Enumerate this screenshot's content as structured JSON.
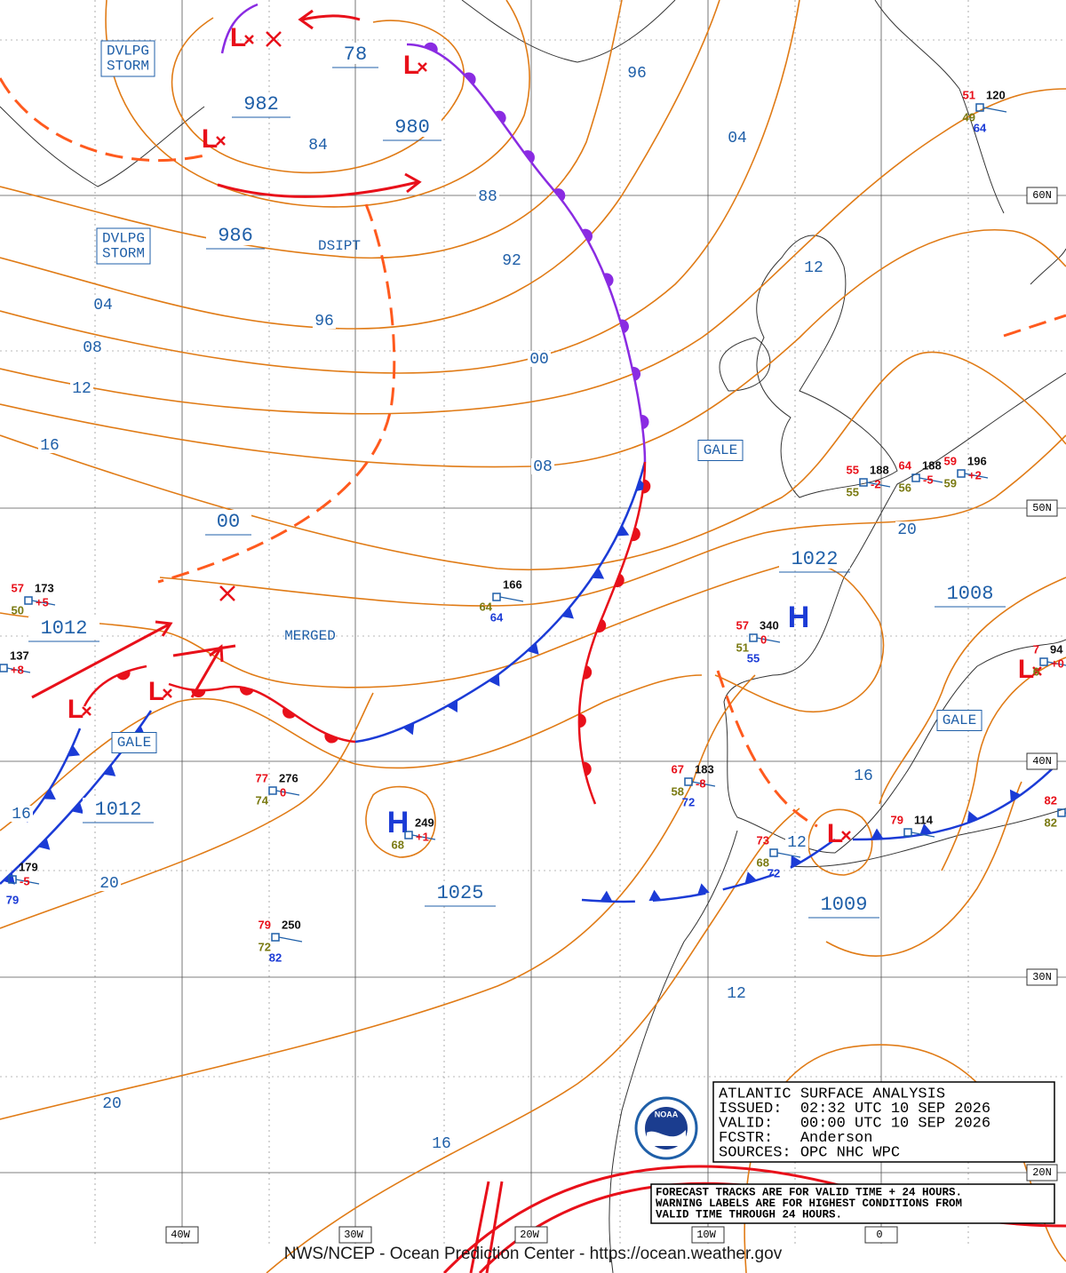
{
  "map": {
    "title_box": [
      "ATLANTIC SURFACE ANALYSIS",
      "ISSUED:  02:32 UTC 10 SEP 2026",
      "VALID:   00:00 UTC 10 SEP 2026",
      "FCSTR:   Anderson",
      "SOURCES: OPC NHC WPC"
    ],
    "notice": [
      "FORECAST TRACKS ARE FOR VALID TIME + 24 HOURS.",
      "WARNING LABELS ARE FOR HIGHEST CONDITIONS FROM",
      "VALID TIME THROUGH 24 HOURS."
    ],
    "footer": "NWS/NCEP - Ocean Prediction Center - https://ocean.weather.gov",
    "logo_text": "NOAA",
    "lat_labels": [
      "60N",
      "50N",
      "40N",
      "30N",
      "20N"
    ],
    "lon_labels": [
      "40W",
      "30W",
      "20W",
      "10W",
      "0"
    ],
    "pressure_labels": [
      "982",
      "980",
      "78",
      "986",
      "00",
      "1022",
      "1008",
      "1012",
      "1012",
      "1025",
      "1009"
    ],
    "isobar_labels": [
      "96",
      "04",
      "84",
      "88",
      "92",
      "96",
      "04",
      "08",
      "12",
      "16",
      "00",
      "08",
      "12",
      "20",
      "16",
      "16",
      "20",
      "12",
      "12",
      "20",
      "16"
    ],
    "warnings": [
      [
        "DVLPG",
        "STORM"
      ],
      [
        "DVLPG",
        "STORM"
      ],
      [
        "GALE"
      ],
      [
        "GALE"
      ],
      [
        "GALE"
      ]
    ],
    "notes": [
      "DSIPT",
      "MERGED"
    ],
    "centers": [
      "L",
      "L",
      "L",
      "L",
      "L",
      "L",
      "L",
      "H",
      "H"
    ],
    "stations": [
      {
        "temp": "51",
        "pres": "120",
        "dew": "49",
        "vis": "64"
      },
      {
        "temp": "55",
        "pres": "188",
        "dew": "55",
        "tend": "-2"
      },
      {
        "temp": "64",
        "pres": "188",
        "dew": "56",
        "tend": "-5"
      },
      {
        "temp": "59",
        "pres": "196",
        "dew": "59",
        "tend": "+2"
      },
      {
        "temp": "57",
        "pres": "173",
        "dew": "50",
        "tend": "+5"
      },
      {
        "pres": "137",
        "tend": "+8"
      },
      {
        "pres": "166",
        "dew": "64",
        "vis": "64"
      },
      {
        "temp": "57",
        "pres": "340",
        "dew": "51",
        "vis": "55",
        "tend": "0"
      },
      {
        "temp": "77",
        "pres": "276",
        "dew": "74",
        "tend": "0"
      },
      {
        "pres": "249",
        "dew": "68",
        "tend": "+1"
      },
      {
        "temp": "67",
        "pres": "183",
        "dew": "58",
        "vis": "72",
        "tend": "-8"
      },
      {
        "temp": "73",
        "dew": "68",
        "vis": "72"
      },
      {
        "temp": "79",
        "pres": "114"
      },
      {
        "temp": "82",
        "dew": "82"
      },
      {
        "pres": "179",
        "vis": "79",
        "tend": "-5"
      },
      {
        "temp": "79",
        "pres": "250",
        "dew": "72",
        "vis": "82"
      },
      {
        "temp": "7",
        "pres": "94",
        "dew": "6",
        "tend": "+0"
      }
    ]
  }
}
